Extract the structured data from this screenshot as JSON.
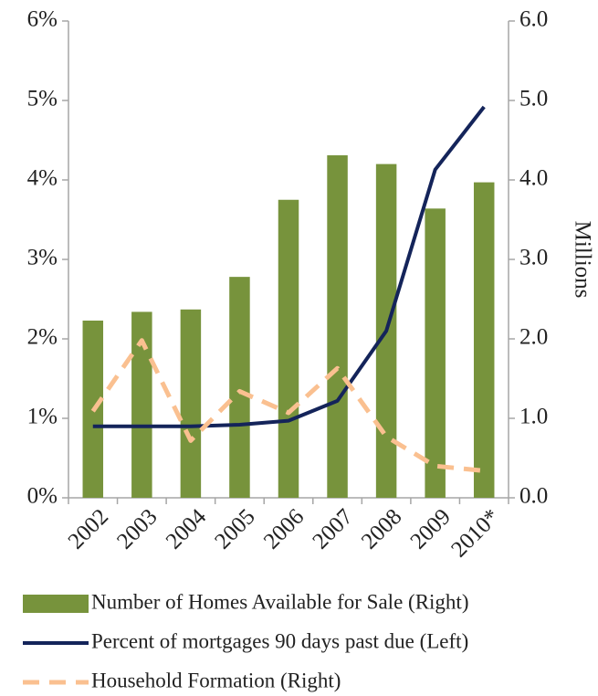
{
  "chart_data": {
    "type": "bar",
    "categories": [
      "2002",
      "2003",
      "2004",
      "2005",
      "2006",
      "2007",
      "2008",
      "2009",
      "2010*"
    ],
    "ylim": [
      0,
      6
    ],
    "yticks": [
      {
        "value": 0,
        "label": "0%"
      },
      {
        "value": 1,
        "label": "1%"
      },
      {
        "value": 2,
        "label": "2%"
      },
      {
        "value": 3,
        "label": "3%"
      },
      {
        "value": 4,
        "label": "4%"
      },
      {
        "value": 5,
        "label": "5%"
      },
      {
        "value": 6,
        "label": "6%"
      }
    ],
    "y2lim": [
      0,
      6
    ],
    "y2ticks": [
      {
        "value": 0,
        "label": "0.0"
      },
      {
        "value": 1,
        "label": "1.0"
      },
      {
        "value": 2,
        "label": "2.0"
      },
      {
        "value": 3,
        "label": "3.0"
      },
      {
        "value": 4,
        "label": "4.0"
      },
      {
        "value": 5,
        "label": "5.0"
      },
      {
        "value": 6,
        "label": "6.0"
      }
    ],
    "y2label": "Millions",
    "grid": false,
    "series": [
      {
        "name": "Number of  Homes  Available for Sale (Right)",
        "type": "bar",
        "axis": "y2",
        "color": "#77933c",
        "values": [
          2.23,
          2.34,
          2.37,
          2.78,
          3.75,
          4.31,
          4.2,
          3.64,
          3.97
        ]
      },
      {
        "name": "Percent of mortgages  90 days past due (Left)",
        "type": "line",
        "axis": "y",
        "color": "#14245a",
        "values": [
          0.9,
          0.9,
          0.9,
          0.92,
          0.97,
          1.22,
          2.1,
          4.13,
          4.92
        ]
      },
      {
        "name": "Household Formation (Right)",
        "type": "line",
        "axis": "y2",
        "dashed": true,
        "color": "#fac090",
        "values": [
          1.09,
          1.98,
          0.72,
          1.34,
          1.07,
          1.63,
          0.77,
          0.4,
          0.34
        ]
      }
    ]
  }
}
